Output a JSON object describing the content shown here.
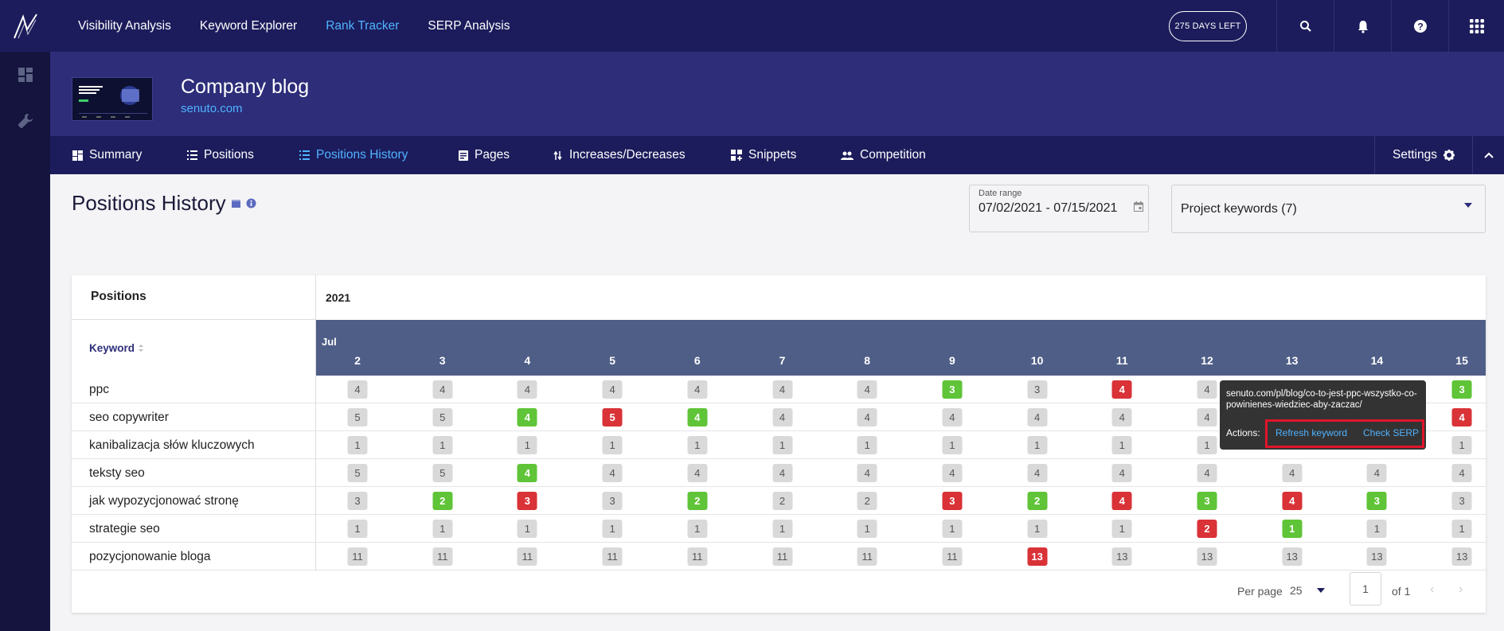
{
  "topnav": {
    "items": [
      {
        "label": "Visibility Analysis",
        "active": false
      },
      {
        "label": "Keyword Explorer",
        "active": false
      },
      {
        "label": "Rank Tracker",
        "active": true
      },
      {
        "label": "SERP Analysis",
        "active": false
      }
    ],
    "days_left": "275 DAYS LEFT"
  },
  "project": {
    "title": "Company blog",
    "domain": "senuto.com"
  },
  "tabs": [
    {
      "label": "Summary",
      "icon": "dashboard-icon",
      "active": false
    },
    {
      "label": "Positions",
      "icon": "list-icon",
      "active": false
    },
    {
      "label": "Positions History",
      "icon": "list-icon",
      "active": true
    },
    {
      "label": "Pages",
      "icon": "document-icon",
      "active": false
    },
    {
      "label": "Increases/Decreases",
      "icon": "arrows-icon",
      "active": false
    },
    {
      "label": "Snippets",
      "icon": "snippets-icon",
      "active": false
    },
    {
      "label": "Competition",
      "icon": "people-icon",
      "active": false
    }
  ],
  "settings_label": "Settings",
  "page_title": "Positions History",
  "date_range": {
    "label": "Date range",
    "value": "07/02/2021 - 07/15/2021"
  },
  "keyword_select": {
    "value": "Project keywords (7)"
  },
  "table": {
    "positions_label": "Positions",
    "year": "2021",
    "keyword_header": "Keyword",
    "month": "Jul",
    "days": [
      "2",
      "3",
      "4",
      "5",
      "6",
      "7",
      "8",
      "9",
      "10",
      "11",
      "12",
      "13",
      "14",
      "15"
    ],
    "rows": [
      {
        "keyword": "ppc",
        "cells": [
          {
            "v": "4",
            "s": "n"
          },
          {
            "v": "4",
            "s": "n"
          },
          {
            "v": "4",
            "s": "n"
          },
          {
            "v": "4",
            "s": "n"
          },
          {
            "v": "4",
            "s": "n"
          },
          {
            "v": "4",
            "s": "n"
          },
          {
            "v": "4",
            "s": "n"
          },
          {
            "v": "3",
            "s": "up"
          },
          {
            "v": "3",
            "s": "n"
          },
          {
            "v": "4",
            "s": "down"
          },
          {
            "v": "4",
            "s": "n"
          },
          {
            "v": "",
            "s": "hidden"
          },
          {
            "v": "",
            "s": "hidden"
          },
          {
            "v": "3",
            "s": "up"
          }
        ]
      },
      {
        "keyword": "seo copywriter",
        "cells": [
          {
            "v": "5",
            "s": "n"
          },
          {
            "v": "5",
            "s": "n"
          },
          {
            "v": "4",
            "s": "up"
          },
          {
            "v": "5",
            "s": "down"
          },
          {
            "v": "4",
            "s": "up"
          },
          {
            "v": "4",
            "s": "n"
          },
          {
            "v": "4",
            "s": "n"
          },
          {
            "v": "4",
            "s": "n"
          },
          {
            "v": "4",
            "s": "n"
          },
          {
            "v": "4",
            "s": "n"
          },
          {
            "v": "4",
            "s": "n"
          },
          {
            "v": "",
            "s": "hidden"
          },
          {
            "v": "",
            "s": "hidden"
          },
          {
            "v": "4",
            "s": "down"
          }
        ]
      },
      {
        "keyword": "kanibalizacja słów kluczowych",
        "cells": [
          {
            "v": "1",
            "s": "n"
          },
          {
            "v": "1",
            "s": "n"
          },
          {
            "v": "1",
            "s": "n"
          },
          {
            "v": "1",
            "s": "n"
          },
          {
            "v": "1",
            "s": "n"
          },
          {
            "v": "1",
            "s": "n"
          },
          {
            "v": "1",
            "s": "n"
          },
          {
            "v": "1",
            "s": "n"
          },
          {
            "v": "1",
            "s": "n"
          },
          {
            "v": "1",
            "s": "n"
          },
          {
            "v": "1",
            "s": "n"
          },
          {
            "v": "",
            "s": "hidden"
          },
          {
            "v": "",
            "s": "hidden"
          },
          {
            "v": "1",
            "s": "n"
          }
        ]
      },
      {
        "keyword": "teksty seo",
        "cells": [
          {
            "v": "5",
            "s": "n"
          },
          {
            "v": "5",
            "s": "n"
          },
          {
            "v": "4",
            "s": "up"
          },
          {
            "v": "4",
            "s": "n"
          },
          {
            "v": "4",
            "s": "n"
          },
          {
            "v": "4",
            "s": "n"
          },
          {
            "v": "4",
            "s": "n"
          },
          {
            "v": "4",
            "s": "n"
          },
          {
            "v": "4",
            "s": "n"
          },
          {
            "v": "4",
            "s": "n"
          },
          {
            "v": "4",
            "s": "n"
          },
          {
            "v": "4",
            "s": "n"
          },
          {
            "v": "4",
            "s": "n"
          },
          {
            "v": "4",
            "s": "n"
          }
        ]
      },
      {
        "keyword": "jak wypozycjonować stronę",
        "cells": [
          {
            "v": "3",
            "s": "n"
          },
          {
            "v": "2",
            "s": "up"
          },
          {
            "v": "3",
            "s": "down"
          },
          {
            "v": "3",
            "s": "n"
          },
          {
            "v": "2",
            "s": "up"
          },
          {
            "v": "2",
            "s": "n"
          },
          {
            "v": "2",
            "s": "n"
          },
          {
            "v": "3",
            "s": "down"
          },
          {
            "v": "2",
            "s": "up"
          },
          {
            "v": "4",
            "s": "down"
          },
          {
            "v": "3",
            "s": "up"
          },
          {
            "v": "4",
            "s": "down"
          },
          {
            "v": "3",
            "s": "up"
          },
          {
            "v": "3",
            "s": "n"
          }
        ]
      },
      {
        "keyword": "strategie seo",
        "cells": [
          {
            "v": "1",
            "s": "n"
          },
          {
            "v": "1",
            "s": "n"
          },
          {
            "v": "1",
            "s": "n"
          },
          {
            "v": "1",
            "s": "n"
          },
          {
            "v": "1",
            "s": "n"
          },
          {
            "v": "1",
            "s": "n"
          },
          {
            "v": "1",
            "s": "n"
          },
          {
            "v": "1",
            "s": "n"
          },
          {
            "v": "1",
            "s": "n"
          },
          {
            "v": "1",
            "s": "n"
          },
          {
            "v": "2",
            "s": "down"
          },
          {
            "v": "1",
            "s": "up"
          },
          {
            "v": "1",
            "s": "n"
          },
          {
            "v": "1",
            "s": "n"
          }
        ]
      },
      {
        "keyword": "pozycjonowanie bloga",
        "cells": [
          {
            "v": "11",
            "s": "n"
          },
          {
            "v": "11",
            "s": "n"
          },
          {
            "v": "11",
            "s": "n"
          },
          {
            "v": "11",
            "s": "n"
          },
          {
            "v": "11",
            "s": "n"
          },
          {
            "v": "11",
            "s": "n"
          },
          {
            "v": "11",
            "s": "n"
          },
          {
            "v": "11",
            "s": "n"
          },
          {
            "v": "13",
            "s": "down"
          },
          {
            "v": "13",
            "s": "n"
          },
          {
            "v": "13",
            "s": "n"
          },
          {
            "v": "13",
            "s": "n"
          },
          {
            "v": "13",
            "s": "n"
          },
          {
            "v": "13",
            "s": "n"
          }
        ]
      }
    ]
  },
  "pagination": {
    "per_page_label": "Per page",
    "per_page_value": "25",
    "page": "1",
    "of_label": "of 1"
  },
  "tooltip": {
    "url": "senuto.com/pl/blog/co-to-jest-ppc-wszystko-co-powinienes-wiedziec-aby-zaczac/",
    "actions_label": "Actions:",
    "refresh_label": "Refresh keyword",
    "check_serp_label": "Check SERP"
  },
  "colors": {
    "topbar": "#1c1c5c",
    "header": "#2d2d7a",
    "accent": "#4fb3ff",
    "up": "#5fc437",
    "down": "#d93237",
    "highlight": "#e0142a"
  }
}
